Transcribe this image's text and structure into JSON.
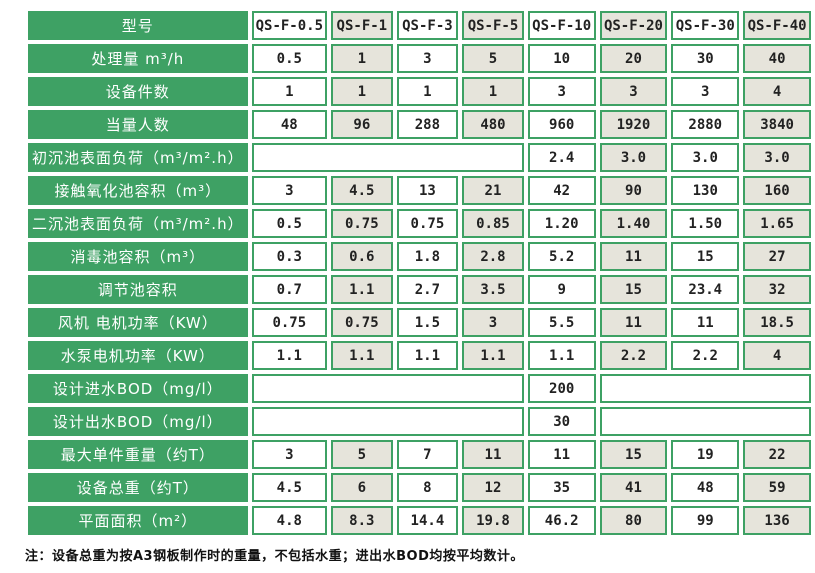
{
  "colors": {
    "green": "#3ea164",
    "beige": "#e6e4db",
    "cellwhite": "#ffffff",
    "numtext": "#222222",
    "notetext": "#111111"
  },
  "table": {
    "header_row": {
      "label": "型号",
      "models": [
        "QS-F-0.5",
        "QS-F-1",
        "QS-F-3",
        "QS-F-5",
        "QS-F-10",
        "QS-F-20",
        "QS-F-30",
        "QS-F-40"
      ]
    },
    "rows": [
      {
        "label": "处理量 m³/h",
        "cells": [
          {
            "value": "0.5",
            "span": 1
          },
          {
            "value": "1",
            "span": 1
          },
          {
            "value": "3",
            "span": 1
          },
          {
            "value": "5",
            "span": 1
          },
          {
            "value": "10",
            "span": 1
          },
          {
            "value": "20",
            "span": 1
          },
          {
            "value": "30",
            "span": 1
          },
          {
            "value": "40",
            "span": 1
          }
        ]
      },
      {
        "label": "设备件数",
        "cells": [
          {
            "value": "1",
            "span": 1
          },
          {
            "value": "1",
            "span": 1
          },
          {
            "value": "1",
            "span": 1
          },
          {
            "value": "1",
            "span": 1
          },
          {
            "value": "3",
            "span": 1
          },
          {
            "value": "3",
            "span": 1
          },
          {
            "value": "3",
            "span": 1
          },
          {
            "value": "4",
            "span": 1
          }
        ]
      },
      {
        "label": "当量人数",
        "cells": [
          {
            "value": "48",
            "span": 1
          },
          {
            "value": "96",
            "span": 1
          },
          {
            "value": "288",
            "span": 1
          },
          {
            "value": "480",
            "span": 1
          },
          {
            "value": "960",
            "span": 1
          },
          {
            "value": "1920",
            "span": 1
          },
          {
            "value": "2880",
            "span": 1
          },
          {
            "value": "3840",
            "span": 1
          }
        ]
      },
      {
        "label": "初沉池表面负荷（m³/m².h）",
        "cells": [
          {
            "value": "",
            "span": 4
          },
          {
            "value": "2.4",
            "span": 1
          },
          {
            "value": "3.0",
            "span": 1
          },
          {
            "value": "3.0",
            "span": 1
          },
          {
            "value": "3.0",
            "span": 1
          }
        ]
      },
      {
        "label": "接触氧化池容积（m³）",
        "cells": [
          {
            "value": "3",
            "span": 1
          },
          {
            "value": "4.5",
            "span": 1
          },
          {
            "value": "13",
            "span": 1
          },
          {
            "value": "21",
            "span": 1
          },
          {
            "value": "42",
            "span": 1
          },
          {
            "value": "90",
            "span": 1
          },
          {
            "value": "130",
            "span": 1
          },
          {
            "value": "160",
            "span": 1
          }
        ]
      },
      {
        "label": "二沉池表面负荷（m³/m².h）",
        "cells": [
          {
            "value": "0.5",
            "span": 1
          },
          {
            "value": "0.75",
            "span": 1
          },
          {
            "value": "0.75",
            "span": 1
          },
          {
            "value": "0.85",
            "span": 1
          },
          {
            "value": "1.20",
            "span": 1
          },
          {
            "value": "1.40",
            "span": 1
          },
          {
            "value": "1.50",
            "span": 1
          },
          {
            "value": "1.65",
            "span": 1
          }
        ]
      },
      {
        "label": "消毒池容积（m³）",
        "cells": [
          {
            "value": "0.3",
            "span": 1
          },
          {
            "value": "0.6",
            "span": 1
          },
          {
            "value": "1.8",
            "span": 1
          },
          {
            "value": "2.8",
            "span": 1
          },
          {
            "value": "5.2",
            "span": 1
          },
          {
            "value": "11",
            "span": 1
          },
          {
            "value": "15",
            "span": 1
          },
          {
            "value": "27",
            "span": 1
          }
        ]
      },
      {
        "label": "调节池容积",
        "cells": [
          {
            "value": "0.7",
            "span": 1
          },
          {
            "value": "1.1",
            "span": 1
          },
          {
            "value": "2.7",
            "span": 1
          },
          {
            "value": "3.5",
            "span": 1
          },
          {
            "value": "9",
            "span": 1
          },
          {
            "value": "15",
            "span": 1
          },
          {
            "value": "23.4",
            "span": 1
          },
          {
            "value": "32",
            "span": 1
          }
        ]
      },
      {
        "label": "风机 电机功率（KW）",
        "cells": [
          {
            "value": "0.75",
            "span": 1
          },
          {
            "value": "0.75",
            "span": 1
          },
          {
            "value": "1.5",
            "span": 1
          },
          {
            "value": "3",
            "span": 1
          },
          {
            "value": "5.5",
            "span": 1
          },
          {
            "value": "11",
            "span": 1
          },
          {
            "value": "11",
            "span": 1
          },
          {
            "value": "18.5",
            "span": 1
          }
        ]
      },
      {
        "label": "水泵电机功率（KW）",
        "cells": [
          {
            "value": "1.1",
            "span": 1
          },
          {
            "value": "1.1",
            "span": 1
          },
          {
            "value": "1.1",
            "span": 1
          },
          {
            "value": "1.1",
            "span": 1
          },
          {
            "value": "1.1",
            "span": 1
          },
          {
            "value": "2.2",
            "span": 1
          },
          {
            "value": "2.2",
            "span": 1
          },
          {
            "value": "4",
            "span": 1
          }
        ]
      },
      {
        "label": "设计进水BOD（mg/l）",
        "cells": [
          {
            "value": "",
            "span": 4
          },
          {
            "value": "200",
            "span": 1
          },
          {
            "value": "",
            "span": 3
          }
        ]
      },
      {
        "label": "设计出水BOD（mg/l）",
        "cells": [
          {
            "value": "",
            "span": 4
          },
          {
            "value": "30",
            "span": 1
          },
          {
            "value": "",
            "span": 3
          }
        ]
      },
      {
        "label": "最大单件重量（约T）",
        "cells": [
          {
            "value": "3",
            "span": 1
          },
          {
            "value": "5",
            "span": 1
          },
          {
            "value": "7",
            "span": 1
          },
          {
            "value": "11",
            "span": 1
          },
          {
            "value": "11",
            "span": 1
          },
          {
            "value": "15",
            "span": 1
          },
          {
            "value": "19",
            "span": 1
          },
          {
            "value": "22",
            "span": 1
          }
        ]
      },
      {
        "label": "设备总重（约T）",
        "cells": [
          {
            "value": "4.5",
            "span": 1
          },
          {
            "value": "6",
            "span": 1
          },
          {
            "value": "8",
            "span": 1
          },
          {
            "value": "12",
            "span": 1
          },
          {
            "value": "35",
            "span": 1
          },
          {
            "value": "41",
            "span": 1
          },
          {
            "value": "48",
            "span": 1
          },
          {
            "value": "59",
            "span": 1
          }
        ]
      },
      {
        "label": "平面面积（m²）",
        "cells": [
          {
            "value": "4.8",
            "span": 1
          },
          {
            "value": "8.3",
            "span": 1
          },
          {
            "value": "14.4",
            "span": 1
          },
          {
            "value": "19.8",
            "span": 1
          },
          {
            "value": "46.2",
            "span": 1
          },
          {
            "value": "80",
            "span": 1
          },
          {
            "value": "99",
            "span": 1
          },
          {
            "value": "136",
            "span": 1
          }
        ]
      }
    ]
  },
  "note": "注：设备总重为按A3钢板制作时的重量，不包括水重；进出水BOD均按平均数计。"
}
